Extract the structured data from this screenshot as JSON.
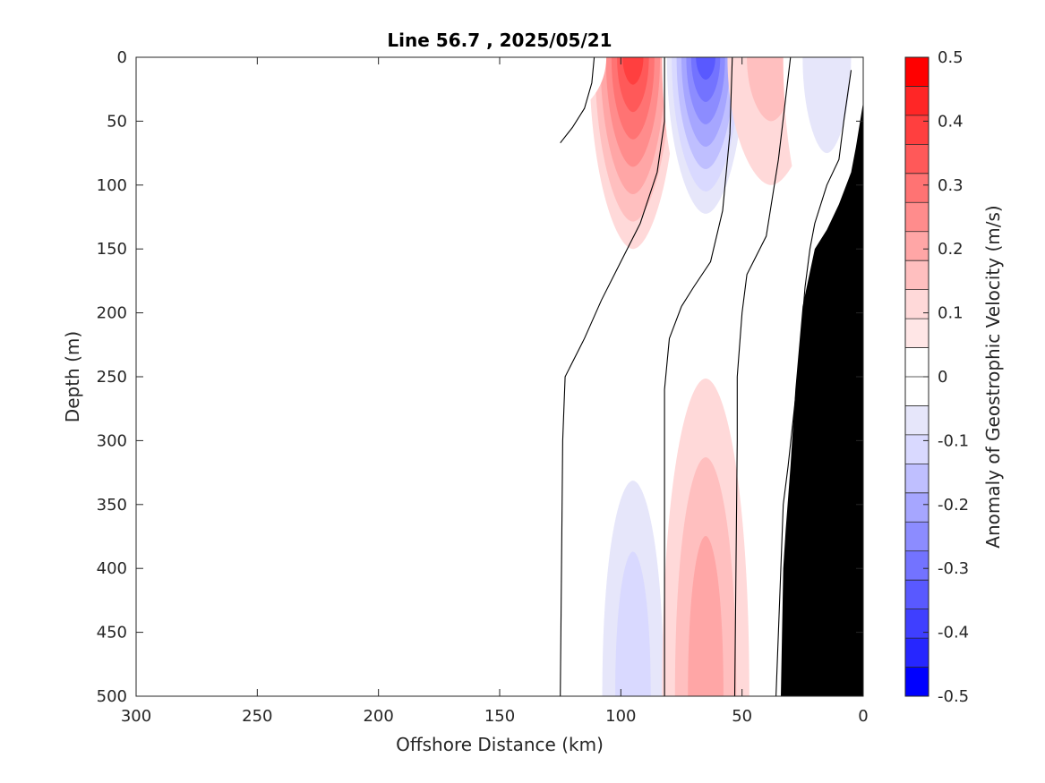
{
  "chart_data": {
    "type": "contour",
    "title": "Line 56.7 , 2025/05/21",
    "xlabel": "Offshore Distance (km)",
    "ylabel": "Depth (m)",
    "xlim": [
      300,
      0
    ],
    "ylim": [
      500,
      0
    ],
    "x_reversed": true,
    "y_reversed": true,
    "x_ticks": [
      "300",
      "250",
      "200",
      "150",
      "100",
      "50",
      "0"
    ],
    "y_ticks": [
      "0",
      "50",
      "100",
      "150",
      "200",
      "250",
      "300",
      "350",
      "400",
      "450",
      "500"
    ],
    "grid": false,
    "colorbar": {
      "label": "Anomaly of Geostrophic Velocity (m/s)",
      "range": [
        -0.5,
        0.5
      ],
      "tick_labels": [
        "0.5",
        "0.4",
        "0.3",
        "0.2",
        "0.1",
        "0",
        "-0.1",
        "-0.2",
        "-0.3",
        "-0.4",
        "-0.5"
      ],
      "levels": [
        0.5,
        0.45,
        0.4,
        0.35,
        0.3,
        0.25,
        0.2,
        0.15,
        0.1,
        0.05,
        0,
        -0.05,
        -0.1,
        -0.15,
        -0.2,
        -0.25,
        -0.3,
        -0.35,
        -0.4,
        -0.45,
        -0.5
      ],
      "colors": [
        "#ff0000",
        "#ff2626",
        "#ff3f3f",
        "#ff5959",
        "#ff7373",
        "#ff8c8c",
        "#ffa6a6",
        "#ffbfbf",
        "#ffd9d9",
        "#ffe6e6",
        "#ffffff",
        "#ffffff",
        "#e6e6fa",
        "#d9d9ff",
        "#bfbfff",
        "#a6a6ff",
        "#8c8cff",
        "#7373ff",
        "#5959ff",
        "#3f3fff",
        "#2626ff",
        "#0000ff"
      ]
    },
    "features": [
      {
        "name": "positive-core-95km",
        "sign": "positive",
        "peak": 0.35,
        "x_center": 95,
        "depth_range": [
          0,
          150
        ]
      },
      {
        "name": "negative-core-65km",
        "sign": "negative",
        "peak": -0.4,
        "x_center": 65,
        "depth_range": [
          0,
          140
        ]
      },
      {
        "name": "positive-lobe-38km",
        "sign": "positive",
        "peak": 0.1,
        "x_center": 38,
        "depth_range": [
          0,
          100
        ]
      },
      {
        "name": "negative-lobe-15km",
        "sign": "negative",
        "peak": -0.1,
        "x_center": 15,
        "depth_range": [
          0,
          150
        ]
      },
      {
        "name": "negative-deep-95km",
        "sign": "negative",
        "peak": -0.15,
        "x_center": 95,
        "depth_range": [
          270,
          500
        ]
      },
      {
        "name": "positive-deep-65km",
        "sign": "positive",
        "peak": 0.15,
        "x_center": 65,
        "depth_range": [
          245,
          500
        ]
      },
      {
        "name": "negative-near-125km",
        "sign": "negative",
        "peak": -0.05,
        "x_center": 124,
        "depth_range": [
          0,
          45
        ]
      }
    ],
    "zero_contours": [
      {
        "name": "zero-contour-a",
        "points": [
          [
            125,
            500
          ],
          [
            124,
            300
          ],
          [
            123,
            250
          ],
          [
            115,
            220
          ],
          [
            108,
            190
          ],
          [
            100,
            160
          ],
          [
            92,
            130
          ],
          [
            85,
            90
          ],
          [
            82,
            50
          ],
          [
            82,
            0
          ]
        ]
      },
      {
        "name": "zero-contour-b",
        "points": [
          [
            82,
            500
          ],
          [
            82,
            260
          ],
          [
            80,
            220
          ],
          [
            75,
            195
          ],
          [
            70,
            180
          ],
          [
            63,
            160
          ],
          [
            58,
            120
          ],
          [
            55,
            60
          ],
          [
            54,
            0
          ]
        ]
      },
      {
        "name": "zero-contour-c",
        "points": [
          [
            53,
            500
          ],
          [
            52,
            300
          ],
          [
            52,
            250
          ],
          [
            50,
            200
          ],
          [
            48,
            170
          ],
          [
            40,
            140
          ],
          [
            35,
            80
          ],
          [
            30,
            0
          ]
        ]
      },
      {
        "name": "zero-contour-d",
        "points": [
          [
            36,
            500
          ],
          [
            35,
            450
          ],
          [
            34,
            400
          ],
          [
            33,
            350
          ],
          [
            31,
            320
          ],
          [
            27,
            250
          ],
          [
            24,
            180
          ],
          [
            22,
            150
          ],
          [
            20,
            130
          ],
          [
            15,
            100
          ],
          [
            10,
            80
          ],
          [
            8,
            50
          ],
          [
            5,
            10
          ]
        ]
      },
      {
        "name": "zero-contour-e",
        "points": [
          [
            125,
            67
          ],
          [
            120,
            55
          ],
          [
            115,
            40
          ],
          [
            112,
            20
          ],
          [
            111,
            0
          ]
        ]
      }
    ],
    "bathymetry": {
      "color": "#000000",
      "bottom_profile": [
        [
          34,
          500
        ],
        [
          33,
          400
        ],
        [
          32,
          370
        ],
        [
          30,
          320
        ],
        [
          28,
          260
        ],
        [
          25,
          195
        ],
        [
          20,
          150
        ],
        [
          15,
          135
        ],
        [
          10,
          115
        ],
        [
          5,
          90
        ],
        [
          3,
          70
        ],
        [
          0,
          35
        ]
      ]
    }
  }
}
